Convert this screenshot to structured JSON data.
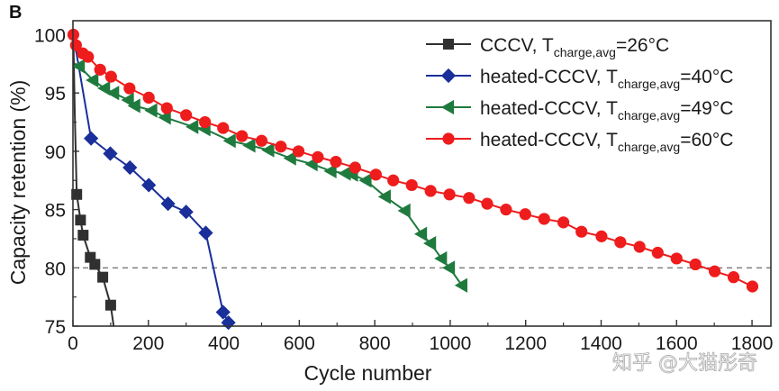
{
  "chart_data": {
    "type": "line",
    "panel_label": "B",
    "title": "",
    "xlabel": "Cycle number",
    "ylabel": "Capacity retention (%)",
    "xlim": [
      0,
      1850
    ],
    "ylim": [
      75,
      101.2
    ],
    "x_ticks": [
      0,
      200,
      400,
      600,
      800,
      1000,
      1200,
      1400,
      1600,
      1800
    ],
    "x_minor_ticks": [
      100,
      300,
      500,
      700,
      900,
      1100,
      1300,
      1500,
      1700
    ],
    "y_ticks": [
      75,
      80,
      85,
      90,
      95,
      100
    ],
    "y_minor_ticks": [
      77.5,
      82.5,
      87.5,
      92.5,
      97.5
    ],
    "grid": false,
    "reference_line": {
      "y": 80,
      "style": "dashed",
      "color": "#777777"
    },
    "legend": {
      "placement": "top-right",
      "frame": true
    },
    "series": [
      {
        "name": "CCCV, T_charge,avg=26°C",
        "legend_main": "CCCV, T",
        "legend_sub": "charge,avg",
        "legend_tail": "=26°C",
        "color": "#303030",
        "marker": "square",
        "points": [
          [
            1,
            100.0
          ],
          [
            5,
            93.0
          ],
          [
            10,
            86.3
          ],
          [
            20,
            84.1
          ],
          [
            27,
            82.8
          ],
          [
            46,
            80.9
          ],
          [
            58,
            80.3
          ],
          [
            79,
            79.2
          ],
          [
            100,
            76.8
          ],
          [
            108,
            75.0
          ]
        ],
        "marker_points": [
          [
            10,
            86.3
          ],
          [
            20,
            84.1
          ],
          [
            27,
            82.8
          ],
          [
            46,
            80.9
          ],
          [
            58,
            80.3
          ],
          [
            79,
            79.2
          ],
          [
            100,
            76.8
          ]
        ]
      },
      {
        "name": "heated-CCCV, T_charge,avg=40°C",
        "legend_main": "heated-CCCV, T",
        "legend_sub": "charge,avg",
        "legend_tail": "=40°C",
        "color": "#1a2f9a",
        "marker": "diamond",
        "points": [
          [
            1,
            100.0
          ],
          [
            48,
            91.1
          ],
          [
            99,
            89.8
          ],
          [
            151,
            88.6
          ],
          [
            201,
            87.1
          ],
          [
            252,
            85.5
          ],
          [
            300,
            84.8
          ],
          [
            352,
            83.0
          ],
          [
            398,
            76.2
          ],
          [
            412,
            75.3
          ]
        ],
        "marker_points": [
          [
            48,
            91.1
          ],
          [
            99,
            89.8
          ],
          [
            151,
            88.6
          ],
          [
            201,
            87.1
          ],
          [
            252,
            85.5
          ],
          [
            300,
            84.8
          ],
          [
            352,
            83.0
          ],
          [
            398,
            76.2
          ],
          [
            412,
            75.3
          ]
        ]
      },
      {
        "name": "heated-CCCV, T_charge,avg=49°C",
        "legend_main": "heated-CCCV, T",
        "legend_sub": "charge,avg",
        "legend_tail": "=49°C",
        "color": "#1f7a3e",
        "marker": "triangle-left",
        "points": [
          [
            17,
            97.3
          ],
          [
            53,
            96.1
          ],
          [
            84,
            95.4
          ],
          [
            108,
            95.0
          ],
          [
            147,
            94.4
          ],
          [
            164,
            93.9
          ],
          [
            209,
            93.5
          ],
          [
            245,
            92.9
          ],
          [
            318,
            92.1
          ],
          [
            350,
            91.9
          ],
          [
            417,
            90.9
          ],
          [
            469,
            90.5
          ],
          [
            519,
            90.1
          ],
          [
            577,
            89.4
          ],
          [
            634,
            88.9
          ],
          [
            684,
            88.3
          ],
          [
            722,
            88.1
          ],
          [
            741,
            88.0
          ],
          [
            777,
            87.5
          ],
          [
            828,
            86.1
          ],
          [
            880,
            84.9
          ],
          [
            924,
            82.9
          ],
          [
            948,
            82.1
          ],
          [
            977,
            80.8
          ],
          [
            998,
            80.0
          ],
          [
            1031,
            78.5
          ]
        ],
        "marker_points": [
          [
            17,
            97.3
          ],
          [
            53,
            96.1
          ],
          [
            84,
            95.4
          ],
          [
            108,
            95.0
          ],
          [
            147,
            94.4
          ],
          [
            164,
            93.9
          ],
          [
            209,
            93.5
          ],
          [
            245,
            92.9
          ],
          [
            318,
            92.1
          ],
          [
            350,
            91.9
          ],
          [
            417,
            90.9
          ],
          [
            469,
            90.5
          ],
          [
            519,
            90.1
          ],
          [
            577,
            89.4
          ],
          [
            634,
            88.9
          ],
          [
            684,
            88.3
          ],
          [
            722,
            88.1
          ],
          [
            741,
            88.0
          ],
          [
            777,
            87.5
          ],
          [
            828,
            86.1
          ],
          [
            880,
            84.9
          ],
          [
            924,
            82.9
          ],
          [
            948,
            82.1
          ],
          [
            977,
            80.8
          ],
          [
            998,
            80.0
          ],
          [
            1031,
            78.5
          ]
        ]
      },
      {
        "name": "heated-CCCV, T_charge,avg=60°C",
        "legend_main": "heated-CCCV, T",
        "legend_sub": "charge,avg",
        "legend_tail": "=60°C",
        "color": "#ee1c1c",
        "marker": "circle",
        "points": [
          [
            1,
            100.0
          ],
          [
            8,
            99.1
          ],
          [
            26,
            98.4
          ],
          [
            40,
            98.1
          ],
          [
            72,
            97.0
          ],
          [
            101,
            96.4
          ],
          [
            150,
            95.4
          ],
          [
            201,
            94.6
          ],
          [
            249,
            93.7
          ],
          [
            300,
            93.1
          ],
          [
            350,
            92.5
          ],
          [
            398,
            92.0
          ],
          [
            448,
            91.3
          ],
          [
            500,
            90.9
          ],
          [
            551,
            90.4
          ],
          [
            598,
            90.0
          ],
          [
            649,
            89.5
          ],
          [
            697,
            89.1
          ],
          [
            748,
            88.6
          ],
          [
            803,
            88.0
          ],
          [
            849,
            87.5
          ],
          [
            898,
            87.1
          ],
          [
            948,
            86.6
          ],
          [
            998,
            86.3
          ],
          [
            1050,
            86.0
          ],
          [
            1098,
            85.5
          ],
          [
            1148,
            85.0
          ],
          [
            1199,
            84.6
          ],
          [
            1249,
            84.2
          ],
          [
            1300,
            83.9
          ],
          [
            1348,
            83.1
          ],
          [
            1401,
            82.7
          ],
          [
            1451,
            82.2
          ],
          [
            1502,
            81.8
          ],
          [
            1550,
            81.3
          ],
          [
            1600,
            80.8
          ],
          [
            1650,
            80.3
          ],
          [
            1701,
            79.7
          ],
          [
            1751,
            79.2
          ],
          [
            1801,
            78.4
          ]
        ],
        "marker_points": [
          [
            1,
            100.0
          ],
          [
            8,
            99.1
          ],
          [
            26,
            98.4
          ],
          [
            40,
            98.1
          ],
          [
            72,
            97.0
          ],
          [
            101,
            96.4
          ],
          [
            150,
            95.4
          ],
          [
            201,
            94.6
          ],
          [
            249,
            93.7
          ],
          [
            300,
            93.1
          ],
          [
            350,
            92.5
          ],
          [
            398,
            92.0
          ],
          [
            448,
            91.3
          ],
          [
            500,
            90.9
          ],
          [
            551,
            90.4
          ],
          [
            598,
            90.0
          ],
          [
            649,
            89.5
          ],
          [
            697,
            89.1
          ],
          [
            748,
            88.6
          ],
          [
            803,
            88.0
          ],
          [
            849,
            87.5
          ],
          [
            898,
            87.1
          ],
          [
            948,
            86.6
          ],
          [
            998,
            86.3
          ],
          [
            1050,
            86.0
          ],
          [
            1098,
            85.5
          ],
          [
            1148,
            85.0
          ],
          [
            1199,
            84.6
          ],
          [
            1249,
            84.2
          ],
          [
            1300,
            83.9
          ],
          [
            1348,
            83.1
          ],
          [
            1401,
            82.7
          ],
          [
            1451,
            82.2
          ],
          [
            1502,
            81.8
          ],
          [
            1550,
            81.3
          ],
          [
            1600,
            80.8
          ],
          [
            1650,
            80.3
          ],
          [
            1701,
            79.7
          ],
          [
            1751,
            79.2
          ],
          [
            1801,
            78.4
          ]
        ]
      }
    ]
  },
  "watermark": "知乎 @大猫彤奇"
}
